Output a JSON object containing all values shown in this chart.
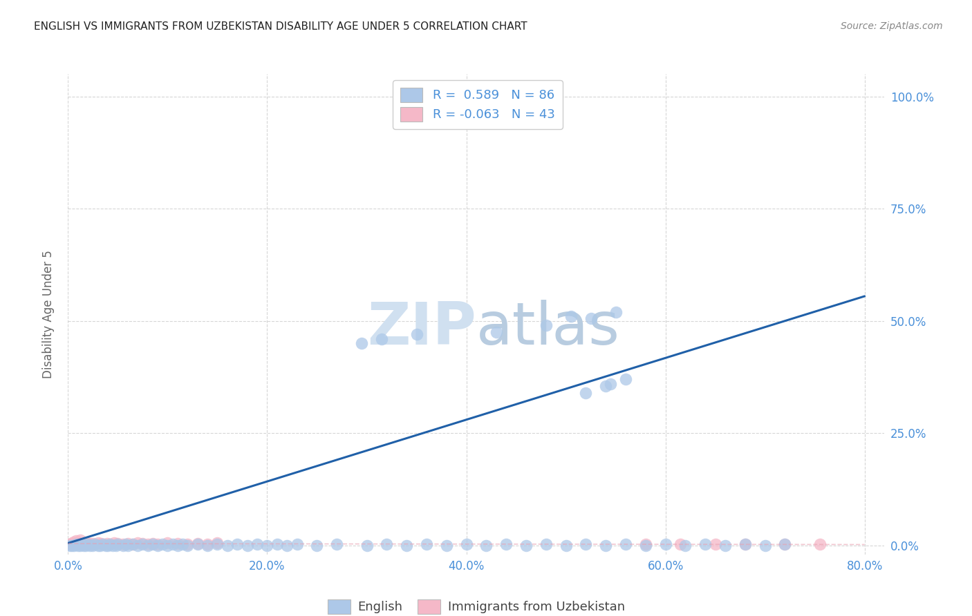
{
  "title": "ENGLISH VS IMMIGRANTS FROM UZBEKISTAN DISABILITY AGE UNDER 5 CORRELATION CHART",
  "source": "Source: ZipAtlas.com",
  "ylabel": "Disability Age Under 5",
  "xlim": [
    0.0,
    0.82
  ],
  "ylim": [
    -0.02,
    1.05
  ],
  "xlabel_vals": [
    0.0,
    0.2,
    0.4,
    0.6,
    0.8
  ],
  "ylabel_vals": [
    0.0,
    0.25,
    0.5,
    0.75,
    1.0
  ],
  "xlabel_labels": [
    "0.0%",
    "20.0%",
    "40.0%",
    "60.0%",
    "80.0%"
  ],
  "ylabel_labels": [
    "0.0%",
    "25.0%",
    "50.0%",
    "75.0%",
    "100.0%"
  ],
  "english_color": "#adc8e8",
  "uzbek_color": "#f5b8c8",
  "trendline_color": "#2060a8",
  "uzbek_trendline_color": "#e8a0b0",
  "background_color": "#ffffff",
  "grid_color": "#cccccc",
  "axis_tick_color": "#4a90d9",
  "watermark_color": "#d0e0f0",
  "legend_top_label1": "R =  0.589   N = 86",
  "legend_top_label2": "R = -0.063   N = 43",
  "legend_bottom_label1": "English",
  "legend_bottom_label2": "Immigrants from Uzbekistan",
  "eng_x": [
    0.002,
    0.004,
    0.006,
    0.008,
    0.01,
    0.012,
    0.014,
    0.016,
    0.018,
    0.02,
    0.022,
    0.025,
    0.027,
    0.03,
    0.032,
    0.035,
    0.038,
    0.04,
    0.042,
    0.045,
    0.048,
    0.05,
    0.055,
    0.058,
    0.06,
    0.065,
    0.07,
    0.075,
    0.08,
    0.085,
    0.09,
    0.095,
    0.1,
    0.105,
    0.11,
    0.115,
    0.12,
    0.13,
    0.14,
    0.15,
    0.16,
    0.17,
    0.18,
    0.19,
    0.2,
    0.21,
    0.22,
    0.23,
    0.25,
    0.27,
    0.3,
    0.32,
    0.34,
    0.36,
    0.38,
    0.4,
    0.42,
    0.44,
    0.46,
    0.48,
    0.5,
    0.52,
    0.54,
    0.56,
    0.58,
    0.6,
    0.62,
    0.64,
    0.66,
    0.68,
    0.7,
    0.72,
    0.35,
    0.43,
    0.48,
    0.505,
    0.525,
    0.55,
    0.54,
    0.56,
    0.52,
    0.545,
    0.39,
    0.415,
    0.295,
    0.315
  ],
  "eng_y": [
    0.0,
    0.0,
    0.0,
    0.002,
    0.0,
    0.0,
    0.002,
    0.0,
    0.0,
    0.002,
    0.0,
    0.0,
    0.002,
    0.0,
    0.0,
    0.002,
    0.0,
    0.0,
    0.002,
    0.0,
    0.0,
    0.002,
    0.0,
    0.002,
    0.0,
    0.002,
    0.0,
    0.002,
    0.0,
    0.002,
    0.0,
    0.002,
    0.0,
    0.002,
    0.0,
    0.002,
    0.0,
    0.002,
    0.0,
    0.002,
    0.0,
    0.002,
    0.0,
    0.002,
    0.0,
    0.002,
    0.0,
    0.002,
    0.0,
    0.002,
    0.0,
    0.002,
    0.0,
    0.002,
    0.0,
    0.002,
    0.0,
    0.002,
    0.0,
    0.002,
    0.0,
    0.002,
    0.0,
    0.002,
    0.0,
    0.002,
    0.0,
    0.002,
    0.0,
    0.002,
    0.0,
    0.002,
    0.47,
    0.475,
    0.49,
    0.51,
    0.505,
    0.52,
    0.355,
    0.37,
    0.34,
    0.36,
    1.0,
    1.0,
    0.45,
    0.46
  ],
  "uzb_x": [
    0.001,
    0.003,
    0.005,
    0.007,
    0.009,
    0.011,
    0.013,
    0.015,
    0.017,
    0.019,
    0.021,
    0.023,
    0.025,
    0.027,
    0.03,
    0.033,
    0.036,
    0.039,
    0.042,
    0.046,
    0.05,
    0.055,
    0.06,
    0.065,
    0.07,
    0.075,
    0.08,
    0.085,
    0.09,
    0.1,
    0.11,
    0.12,
    0.13,
    0.14,
    0.15,
    0.58,
    0.615,
    0.65,
    0.68,
    0.72,
    0.755,
    0.008,
    0.012
  ],
  "uzb_y": [
    0.002,
    0.005,
    0.008,
    0.003,
    0.006,
    0.004,
    0.002,
    0.005,
    0.003,
    0.006,
    0.004,
    0.002,
    0.005,
    0.003,
    0.006,
    0.004,
    0.002,
    0.005,
    0.003,
    0.006,
    0.004,
    0.002,
    0.005,
    0.003,
    0.006,
    0.004,
    0.002,
    0.005,
    0.003,
    0.006,
    0.004,
    0.002,
    0.005,
    0.003,
    0.006,
    0.002,
    0.003,
    0.002,
    0.003,
    0.002,
    0.003,
    0.01,
    0.012
  ],
  "trendline_x0": 0.0,
  "trendline_y0": 0.005,
  "trendline_x1": 0.8,
  "trendline_y1": 0.555
}
